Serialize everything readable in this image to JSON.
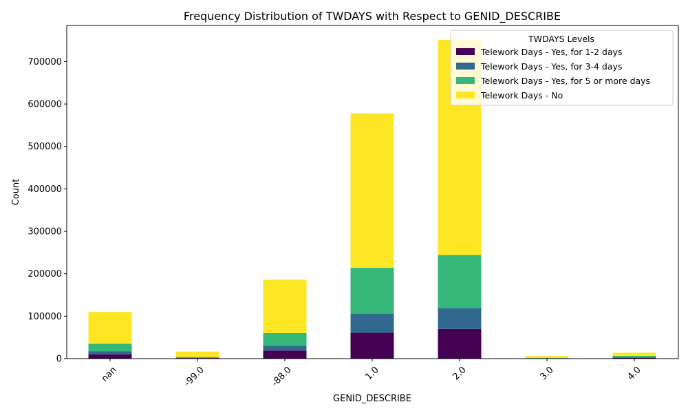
{
  "chart_data": {
    "type": "bar",
    "stacked": true,
    "title": "Frequency Distribution of TWDAYS with Respect to GENID_DESCRIBE",
    "xlabel": "GENID_DESCRIBE",
    "ylabel": "Count",
    "categories": [
      "nan",
      "-99.0",
      "-88.0",
      "1.0",
      "2.0",
      "3.0",
      "4.0"
    ],
    "ylim": [
      0,
      785000
    ],
    "yticks": [
      0,
      100000,
      200000,
      300000,
      400000,
      500000,
      600000,
      700000
    ],
    "ytick_labels": [
      "0",
      "100000",
      "200000",
      "300000",
      "400000",
      "500000",
      "600000",
      "700000"
    ],
    "xtick_rotation": 45,
    "grid": false,
    "legend": {
      "title": "TWDAYS Levels",
      "placement": "top-right"
    },
    "series": [
      {
        "name": "Telework Days - Yes, for 1-2 days",
        "color": "#440154",
        "values": [
          10000,
          1500,
          19000,
          61000,
          70000,
          700,
          2000
        ]
      },
      {
        "name": "Telework Days - Yes, for 3-4 days",
        "color": "#31688e",
        "values": [
          7000,
          700,
          11000,
          45000,
          49000,
          300,
          1500
        ]
      },
      {
        "name": "Telework Days - Yes, for 5 or more days",
        "color": "#35b779",
        "values": [
          18000,
          1500,
          30000,
          108000,
          125000,
          800,
          3000
        ]
      },
      {
        "name": "Telework Days - No",
        "color": "#fde725",
        "values": [
          75000,
          13000,
          126000,
          364000,
          507000,
          4200,
          7500
        ]
      }
    ]
  }
}
